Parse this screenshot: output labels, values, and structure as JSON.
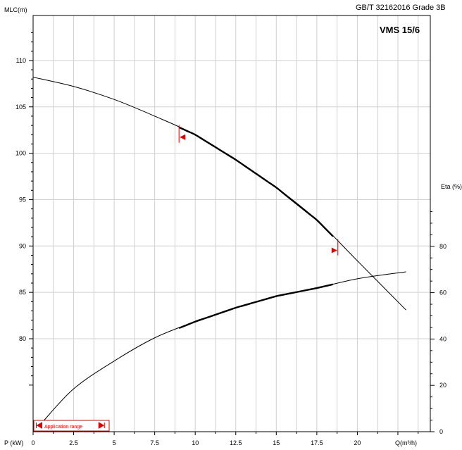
{
  "header": {
    "standard": "GB/T 32162016 Grade 3B",
    "model": "VMS 15/6"
  },
  "chart_data": {
    "type": "line",
    "xlabel": "Q(m³/h)",
    "x_axis_left_label": "P (kW)",
    "ylabel_left": "MLC(m)",
    "ylabel_right": "Eta (%)",
    "x_ticks": [
      0,
      2.5,
      5,
      7.5,
      10,
      12.5,
      15,
      17.5,
      20
    ],
    "x_tick_labels": [
      "0",
      "2.5",
      "5",
      "7.5",
      "10",
      "12.5",
      "15",
      "17.5",
      "20"
    ],
    "xlim": [
      0,
      24.5
    ],
    "left_ticks": [
      80,
      85,
      90,
      95,
      100,
      105,
      110
    ],
    "left_tick_labels": [
      "80",
      "85",
      "90",
      "95",
      "100",
      "105",
      "110"
    ],
    "right_ticks": [
      0,
      20,
      40,
      60,
      80
    ],
    "right_tick_labels": [
      "0",
      "20",
      "40",
      "60",
      "80"
    ],
    "grid": true,
    "series": [
      {
        "axis": "left",
        "x": [
          0,
          2.5,
          5,
          7.5,
          10,
          12.5,
          15,
          17.5,
          20,
          23
        ],
        "values": [
          108.2,
          107.2,
          105.8,
          104.0,
          102.0,
          99.3,
          96.3,
          92.8,
          88.4,
          83.1
        ]
      },
      {
        "axis": "right",
        "x": [
          0.5,
          2.5,
          5,
          7.5,
          10,
          12.5,
          15,
          17.5,
          20,
          23
        ],
        "values": [
          3.5,
          18.5,
          30.5,
          40.5,
          47.5,
          53.5,
          58.5,
          62.0,
          66.0,
          69.0
        ]
      }
    ],
    "operating_range": {
      "q_min": 9.0,
      "q_max": 18.8
    },
    "application_range": {
      "label": "Application range",
      "p_min": 0.2,
      "p_max": 4.5
    }
  }
}
